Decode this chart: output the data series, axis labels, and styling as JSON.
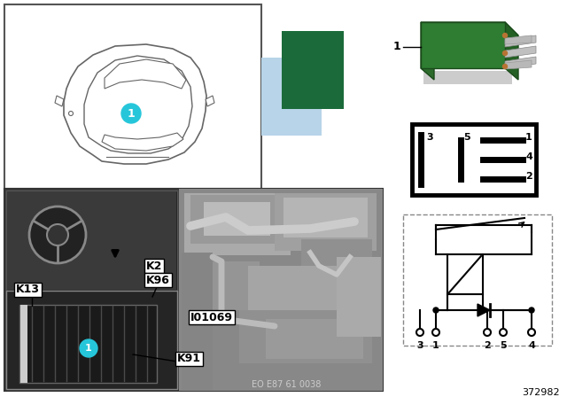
{
  "bg_color": "#ffffff",
  "cyan_color": "#26C6DA",
  "dark_green": "#1B6B3A",
  "light_blue": "#B8D4E8",
  "label_372982": "372982",
  "label_eo": "EO E87 61 0038",
  "pin_diagram_labels": [
    "3",
    "5",
    "1",
    "4",
    "2"
  ],
  "circuit_pins": [
    "3",
    "1",
    "2",
    "5",
    "4"
  ]
}
